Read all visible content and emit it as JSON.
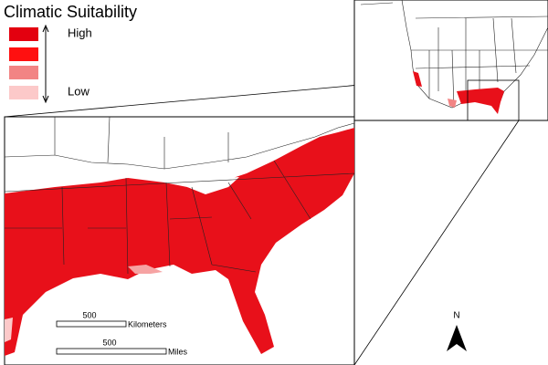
{
  "legend": {
    "title": "Climatic Suitability",
    "high": "High",
    "low": "Low"
  },
  "scale": {
    "km_value": "500",
    "km_unit": "Kilometers",
    "mi_value": "500",
    "mi_unit": "Miles"
  },
  "north": "N"
}
